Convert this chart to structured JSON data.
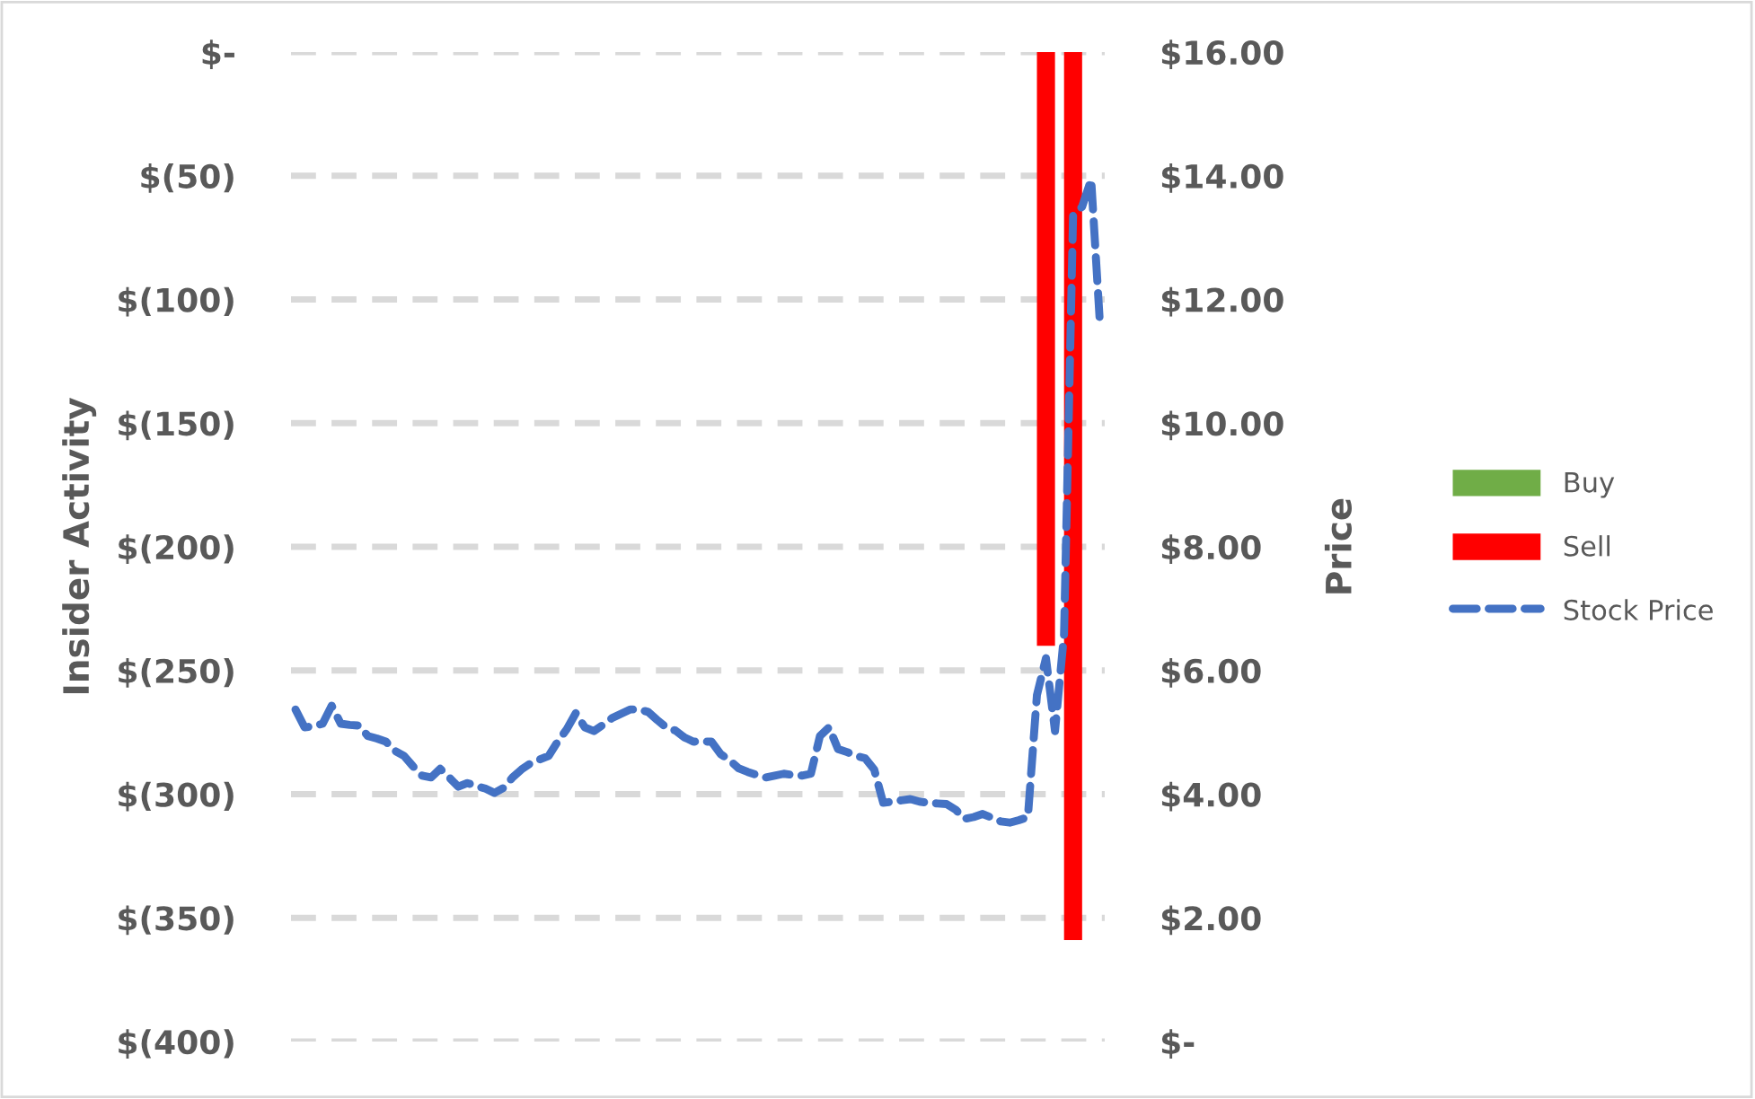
{
  "chart_data": {
    "type": "bar",
    "ylabel": "Insider Activity",
    "y2label": "Price",
    "categories": [
      null,
      null,
      null,
      null,
      null,
      null,
      null,
      null,
      null,
      null,
      null,
      null,
      null,
      null,
      null,
      null,
      null,
      null,
      null,
      null,
      null,
      null,
      null,
      null,
      null,
      null,
      null,
      null,
      null,
      null,
      null,
      null,
      null,
      null,
      null,
      null,
      null,
      null,
      null,
      null,
      null,
      null,
      null,
      null,
      null,
      null,
      null,
      null,
      null,
      null,
      null,
      null,
      null,
      null,
      null,
      null,
      null,
      null,
      null,
      null,
      null,
      null,
      null,
      null,
      null,
      null,
      null,
      null,
      null,
      null,
      null,
      null,
      null,
      null,
      null,
      null,
      null,
      null,
      null,
      null,
      null,
      null,
      null,
      null,
      null,
      null,
      null,
      null,
      null,
      null
    ],
    "ylim": [
      -400,
      0
    ],
    "yticks": [
      {
        "value": 0,
        "label": "$-"
      },
      {
        "value": -50,
        "label": "$(50)"
      },
      {
        "value": -100,
        "label": "$(100)"
      },
      {
        "value": -150,
        "label": "$(150)"
      },
      {
        "value": -200,
        "label": "$(200)"
      },
      {
        "value": -250,
        "label": "$(250)"
      },
      {
        "value": -300,
        "label": "$(300)"
      },
      {
        "value": -350,
        "label": "$(350)"
      },
      {
        "value": -400,
        "label": "$(400)"
      }
    ],
    "y2lim": [
      0,
      16
    ],
    "y2ticks": [
      {
        "value": 0,
        "label": "$-"
      },
      {
        "value": 2,
        "label": "$2.00"
      },
      {
        "value": 4,
        "label": "$4.00"
      },
      {
        "value": 6,
        "label": "$6.00"
      },
      {
        "value": 8,
        "label": "$8.00"
      },
      {
        "value": 10,
        "label": "$10.00"
      },
      {
        "value": 12,
        "label": "$12.00"
      },
      {
        "value": 14,
        "label": "$14.00"
      },
      {
        "value": 16,
        "label": "$16.00"
      }
    ],
    "grid": "y",
    "legend": "right",
    "series": [
      {
        "name": "Buy",
        "color": "#70ad47",
        "values": [
          null,
          null,
          null,
          null,
          null,
          null,
          null,
          null,
          null,
          null,
          null,
          null,
          null,
          null,
          null,
          null,
          null,
          null,
          null,
          null,
          null,
          null,
          null,
          null,
          null,
          null,
          null,
          null,
          null,
          null,
          null,
          null,
          null,
          null,
          null,
          null,
          null,
          null,
          null,
          null,
          null,
          null,
          null,
          null,
          null,
          null,
          null,
          null,
          null,
          null,
          null,
          null,
          null,
          null,
          null,
          null,
          null,
          null,
          null,
          null,
          null,
          null,
          null,
          null,
          null,
          null,
          null,
          null,
          null,
          null,
          null,
          null,
          null,
          null,
          null,
          null,
          null,
          null,
          null,
          null,
          null,
          null,
          null,
          null,
          null,
          null,
          null,
          null,
          null,
          null
        ]
      },
      {
        "name": "Sell",
        "color": "#ff0000",
        "values": [
          null,
          null,
          null,
          null,
          null,
          null,
          null,
          null,
          null,
          null,
          null,
          null,
          null,
          null,
          null,
          null,
          null,
          null,
          null,
          null,
          null,
          null,
          null,
          null,
          null,
          null,
          null,
          null,
          null,
          null,
          null,
          null,
          null,
          null,
          null,
          null,
          null,
          null,
          null,
          null,
          null,
          null,
          null,
          null,
          null,
          null,
          null,
          null,
          null,
          null,
          null,
          null,
          null,
          null,
          null,
          null,
          null,
          null,
          null,
          null,
          null,
          null,
          null,
          null,
          null,
          null,
          null,
          null,
          null,
          null,
          null,
          null,
          null,
          null,
          null,
          null,
          null,
          null,
          null,
          null,
          null,
          null,
          null,
          -240,
          null,
          null,
          -359,
          null,
          null,
          null
        ]
      },
      {
        "name": "Stock Price",
        "type": "line",
        "axis": "y2",
        "color": "#4472c4",
        "line_style": "dashed",
        "values": [
          5.37,
          5.08,
          5.1,
          5.14,
          5.43,
          5.14,
          5.12,
          5.11,
          4.94,
          4.9,
          4.85,
          4.7,
          4.62,
          4.45,
          4.3,
          4.27,
          4.41,
          4.27,
          4.12,
          4.18,
          4.13,
          4.09,
          4.02,
          4.1,
          4.27,
          4.4,
          4.5,
          4.56,
          4.62,
          4.85,
          5.05,
          5.31,
          5.08,
          5.02,
          5.12,
          5.23,
          5.3,
          5.37,
          5.37,
          5.33,
          5.2,
          5.08,
          5.03,
          4.92,
          4.85,
          4.85,
          4.85,
          4.65,
          4.55,
          4.42,
          4.36,
          4.31,
          4.27,
          4.3,
          4.33,
          4.31,
          4.3,
          4.33,
          4.94,
          5.08,
          4.73,
          4.68,
          4.62,
          4.58,
          4.4,
          3.86,
          3.88,
          3.9,
          3.92,
          3.88,
          3.86,
          3.85,
          3.84,
          3.75,
          3.6,
          3.63,
          3.68,
          3.62,
          3.56,
          3.54,
          3.58,
          3.63,
          5.6,
          6.2,
          5.02,
          6.59,
          13.36,
          13.5,
          13.94,
          11.53
        ]
      }
    ]
  }
}
